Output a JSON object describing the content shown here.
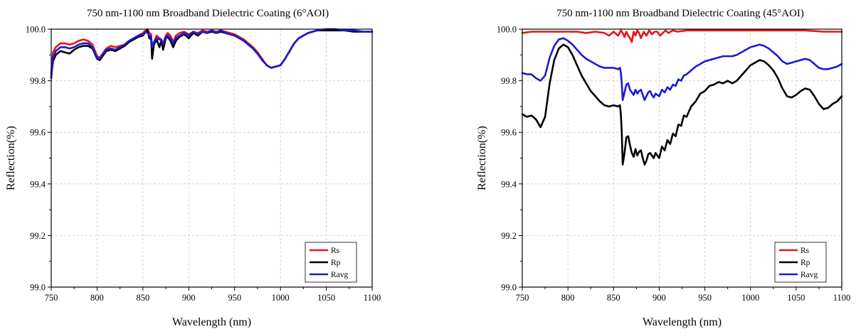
{
  "chart_data": [
    {
      "type": "line",
      "title": "750 nm-1100 nm Broadband Dielectric Coating (6°AOI)",
      "xlabel": "Wavelength (nm)",
      "ylabel": "Reflection(%)",
      "xlim": [
        750,
        1100
      ],
      "ylim": [
        99.0,
        100.0
      ],
      "xticks": [
        750,
        800,
        850,
        900,
        950,
        1000,
        1050,
        1100
      ],
      "yticks": [
        "99.0",
        "99.2",
        "99.4",
        "99.6",
        "99.8",
        "100.0"
      ],
      "grid": true,
      "legend_position": "bottom-right",
      "series": [
        {
          "name": "Rs",
          "color": "#e8141c",
          "x": [
            750,
            752,
            755,
            760,
            765,
            770,
            775,
            780,
            785,
            790,
            795,
            800,
            803,
            806,
            810,
            815,
            820,
            825,
            830,
            835,
            840,
            845,
            850,
            853,
            855,
            857,
            859,
            860,
            862,
            865,
            868,
            870,
            872,
            875,
            877,
            880,
            883,
            886,
            890,
            895,
            900,
            905,
            910,
            915,
            920,
            925,
            930,
            935,
            940,
            945,
            950,
            955,
            960,
            965,
            970,
            975,
            980,
            985,
            990,
            995,
            1000,
            1005,
            1010,
            1015,
            1020,
            1030,
            1040,
            1050,
            1060,
            1070,
            1080,
            1090,
            1100
          ],
          "values": [
            99.83,
            99.91,
            99.93,
            99.945,
            99.945,
            99.94,
            99.945,
            99.955,
            99.96,
            99.955,
            99.94,
            99.895,
            99.89,
            99.905,
            99.925,
            99.935,
            99.93,
            99.935,
            99.94,
            99.955,
            99.965,
            99.975,
            99.985,
            99.995,
            100.0,
            99.985,
            99.98,
            99.9,
            99.95,
            99.975,
            99.965,
            99.96,
            99.945,
            99.975,
            99.985,
            99.975,
            99.95,
            99.975,
            99.985,
            99.99,
            99.98,
            99.99,
            99.985,
            99.995,
            99.99,
            99.995,
            99.99,
            99.995,
            99.99,
            99.985,
            99.98,
            99.97,
            99.96,
            99.945,
            99.93,
            99.91,
            99.885,
            99.86,
            99.85,
            99.855,
            99.86,
            99.885,
            99.915,
            99.945,
            99.965,
            99.985,
            99.995,
            100.0,
            100.0,
            99.995,
            99.995,
            99.99,
            99.99
          ]
        },
        {
          "name": "Rp",
          "color": "#000000",
          "x": [
            750,
            752,
            755,
            760,
            765,
            770,
            775,
            780,
            785,
            790,
            795,
            800,
            803,
            806,
            810,
            815,
            820,
            825,
            830,
            835,
            840,
            845,
            850,
            853,
            855,
            857,
            859,
            860,
            862,
            865,
            868,
            870,
            872,
            875,
            877,
            880,
            883,
            886,
            890,
            895,
            900,
            905,
            910,
            915,
            920,
            925,
            930,
            935,
            940,
            945,
            950,
            955,
            960,
            965,
            970,
            975,
            980,
            985,
            990,
            995,
            1000,
            1005,
            1010,
            1015,
            1020,
            1030,
            1040,
            1050,
            1060,
            1070,
            1080,
            1090,
            1100
          ],
          "values": [
            99.82,
            99.875,
            99.9,
            99.915,
            99.91,
            99.905,
            99.92,
            99.93,
            99.935,
            99.935,
            99.925,
            99.885,
            99.88,
            99.895,
            99.915,
            99.92,
            99.915,
            99.925,
            99.935,
            99.95,
            99.96,
            99.97,
            99.975,
            99.99,
            99.995,
            99.965,
            99.96,
            99.885,
            99.94,
            99.96,
            99.93,
            99.955,
            99.92,
            99.965,
            99.97,
            99.955,
            99.93,
            99.955,
            99.97,
            99.98,
            99.965,
            99.985,
            99.975,
            99.99,
            99.985,
            99.99,
            99.985,
            99.99,
            99.985,
            99.98,
            99.975,
            99.965,
            99.955,
            99.94,
            99.925,
            99.905,
            99.88,
            99.86,
            99.85,
            99.855,
            99.86,
            99.885,
            99.915,
            99.945,
            99.965,
            99.985,
            99.995,
            99.995,
            99.995,
            99.995,
            99.99,
            99.99,
            99.99
          ]
        },
        {
          "name": "Ravg",
          "color": "#1a1ad4",
          "x": [
            750,
            752,
            755,
            760,
            765,
            770,
            775,
            780,
            785,
            790,
            795,
            800,
            803,
            806,
            810,
            815,
            820,
            825,
            830,
            835,
            840,
            845,
            850,
            853,
            855,
            857,
            859,
            860,
            862,
            865,
            868,
            870,
            872,
            875,
            877,
            880,
            883,
            886,
            890,
            895,
            900,
            905,
            910,
            915,
            920,
            925,
            930,
            935,
            940,
            945,
            950,
            955,
            960,
            965,
            970,
            975,
            980,
            985,
            990,
            995,
            1000,
            1005,
            1010,
            1015,
            1020,
            1030,
            1040,
            1050,
            1060,
            1070,
            1080,
            1090,
            1100
          ],
          "values": [
            99.81,
            99.89,
            99.915,
            99.93,
            99.93,
            99.925,
            99.93,
            99.94,
            99.945,
            99.945,
            99.93,
            99.89,
            99.885,
            99.9,
            99.92,
            99.925,
            99.92,
            99.93,
            99.94,
            99.955,
            99.965,
            99.975,
            99.98,
            99.99,
            99.985,
            99.975,
            99.97,
            99.93,
            99.95,
            99.965,
            99.96,
            99.96,
            99.94,
            99.97,
            99.975,
            99.965,
            99.945,
            99.965,
            99.975,
            99.985,
            99.975,
            99.99,
            99.98,
            99.99,
            99.985,
            99.995,
            99.985,
            99.995,
            99.985,
            99.98,
            99.975,
            99.965,
            99.955,
            99.94,
            99.925,
            99.905,
            99.88,
            99.86,
            99.85,
            99.855,
            99.86,
            99.885,
            99.915,
            99.945,
            99.965,
            99.985,
            99.995,
            100.0,
            100.0,
            99.995,
            99.995,
            99.99,
            99.99
          ]
        }
      ]
    },
    {
      "type": "line",
      "title": "750 nm-1100 nm Broadband Dielectric Coating (45°AOI)",
      "xlabel": "Wavelength (nm)",
      "ylabel": "Reflection(%)",
      "xlim": [
        750,
        1100
      ],
      "ylim": [
        99.0,
        100.0
      ],
      "xticks": [
        750,
        800,
        850,
        900,
        950,
        1000,
        1050,
        1100
      ],
      "yticks": [
        "99.0",
        "99.2",
        "99.4",
        "99.6",
        "99.8",
        "100.0"
      ],
      "grid": true,
      "legend_position": "bottom-right",
      "series": [
        {
          "name": "Rs",
          "color": "#e8141c",
          "x": [
            750,
            760,
            770,
            780,
            790,
            800,
            810,
            820,
            830,
            840,
            845,
            850,
            855,
            858,
            860,
            862,
            864,
            866,
            868,
            870,
            872,
            874,
            876,
            878,
            880,
            883,
            886,
            889,
            892,
            895,
            898,
            901,
            904,
            907,
            910,
            915,
            920,
            930,
            940,
            950,
            960,
            980,
            1000,
            1020,
            1040,
            1060,
            1080,
            1100
          ],
          "values": [
            99.985,
            99.99,
            99.99,
            99.99,
            99.99,
            99.99,
            99.99,
            99.985,
            99.99,
            99.985,
            99.975,
            99.99,
            99.975,
            99.995,
            99.985,
            99.97,
            99.99,
            99.975,
            99.965,
            99.95,
            99.99,
            99.975,
            99.995,
            99.985,
            99.965,
            99.99,
            99.975,
            99.995,
            99.98,
            99.99,
            99.99,
            99.975,
            99.985,
            99.995,
            99.985,
            99.995,
            99.99,
            99.995,
            99.995,
            99.995,
            99.995,
            99.995,
            99.995,
            99.995,
            99.995,
            99.995,
            99.99,
            99.99
          ]
        },
        {
          "name": "Rp",
          "color": "#000000",
          "x": [
            750,
            755,
            760,
            765,
            770,
            775,
            780,
            785,
            790,
            795,
            800,
            805,
            810,
            815,
            820,
            825,
            830,
            835,
            840,
            845,
            850,
            855,
            857,
            858,
            859,
            860,
            862,
            864,
            866,
            868,
            870,
            872,
            874,
            876,
            878,
            880,
            882,
            884,
            886,
            888,
            890,
            892,
            894,
            896,
            898,
            900,
            903,
            906,
            909,
            912,
            915,
            918,
            921,
            924,
            927,
            930,
            935,
            940,
            945,
            950,
            955,
            960,
            965,
            970,
            975,
            980,
            985,
            990,
            995,
            1000,
            1005,
            1010,
            1015,
            1020,
            1025,
            1030,
            1035,
            1040,
            1045,
            1050,
            1055,
            1060,
            1065,
            1070,
            1075,
            1080,
            1085,
            1090,
            1095,
            1100
          ],
          "values": [
            99.67,
            99.66,
            99.665,
            99.65,
            99.62,
            99.66,
            99.79,
            99.88,
            99.925,
            99.94,
            99.93,
            99.9,
            99.86,
            99.82,
            99.79,
            99.76,
            99.74,
            99.72,
            99.705,
            99.7,
            99.705,
            99.7,
            99.705,
            99.67,
            99.6,
            99.475,
            99.52,
            99.58,
            99.585,
            99.55,
            99.52,
            99.505,
            99.535,
            99.51,
            99.525,
            99.53,
            99.5,
            99.475,
            99.49,
            99.515,
            99.52,
            99.51,
            99.5,
            99.52,
            99.51,
            99.5,
            99.545,
            99.53,
            99.57,
            99.555,
            99.595,
            99.585,
            99.63,
            99.625,
            99.665,
            99.66,
            99.7,
            99.72,
            99.75,
            99.76,
            99.78,
            99.785,
            99.795,
            99.79,
            99.8,
            99.79,
            99.8,
            99.82,
            99.84,
            99.86,
            99.87,
            99.88,
            99.875,
            99.86,
            99.84,
            99.81,
            99.77,
            99.74,
            99.735,
            99.745,
            99.76,
            99.77,
            99.765,
            99.74,
            99.71,
            99.69,
            99.695,
            99.71,
            99.72,
            99.74
          ]
        },
        {
          "name": "Ravg",
          "color": "#1a1ad4",
          "x": [
            750,
            755,
            760,
            765,
            770,
            775,
            780,
            785,
            790,
            795,
            800,
            805,
            810,
            815,
            820,
            825,
            830,
            835,
            840,
            845,
            850,
            855,
            857,
            858,
            859,
            860,
            862,
            864,
            866,
            868,
            870,
            872,
            874,
            876,
            878,
            880,
            882,
            884,
            886,
            888,
            890,
            892,
            894,
            896,
            898,
            900,
            903,
            906,
            909,
            912,
            915,
            918,
            921,
            924,
            927,
            930,
            935,
            940,
            945,
            950,
            955,
            960,
            965,
            970,
            975,
            980,
            985,
            990,
            995,
            1000,
            1005,
            1010,
            1015,
            1020,
            1025,
            1030,
            1035,
            1040,
            1045,
            1050,
            1055,
            1060,
            1065,
            1070,
            1075,
            1080,
            1085,
            1090,
            1095,
            1100
          ],
          "values": [
            99.83,
            99.825,
            99.825,
            99.81,
            99.8,
            99.82,
            99.89,
            99.935,
            99.96,
            99.965,
            99.955,
            99.94,
            99.92,
            99.9,
            99.885,
            99.875,
            99.865,
            99.855,
            99.85,
            99.85,
            99.85,
            99.845,
            99.85,
            99.83,
            99.79,
            99.725,
            99.755,
            99.785,
            99.79,
            99.765,
            99.755,
            99.745,
            99.765,
            99.75,
            99.76,
            99.765,
            99.745,
            99.725,
            99.74,
            99.755,
            99.76,
            99.745,
            99.735,
            99.75,
            99.745,
            99.74,
            99.765,
            99.755,
            99.775,
            99.765,
            99.785,
            99.78,
            99.805,
            99.8,
            99.82,
            99.825,
            99.84,
            99.855,
            99.865,
            99.875,
            99.88,
            99.885,
            99.89,
            99.895,
            99.895,
            99.895,
            99.9,
            99.91,
            99.92,
            99.93,
            99.935,
            99.94,
            99.935,
            99.925,
            99.91,
            99.895,
            99.875,
            99.865,
            99.87,
            99.875,
            99.88,
            99.885,
            99.88,
            99.865,
            99.85,
            99.845,
            99.845,
            99.85,
            99.855,
            99.865
          ]
        }
      ]
    }
  ]
}
